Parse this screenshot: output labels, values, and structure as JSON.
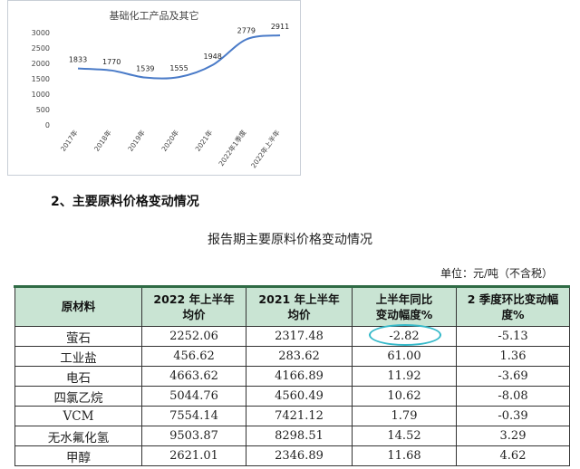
{
  "chart_data": {
    "type": "line",
    "title": "基础化工产品及其它",
    "categories": [
      "2017年",
      "2018年",
      "2019年",
      "2020年",
      "2021年",
      "2022年1季度",
      "2022年上半年"
    ],
    "values": [
      1833,
      1770,
      1539,
      1555,
      1948,
      2779,
      2911
    ],
    "ylim": [
      0,
      3000
    ],
    "yticks": [
      0,
      500,
      1000,
      1500,
      2000,
      2500,
      3000
    ],
    "grid": false,
    "line_color": "#4a7bc8"
  },
  "section_heading": "2、主要原料价格变动情况",
  "table_caption": "报告期主要原料价格变动情况",
  "unit_note": "单位：元/吨（不含税）",
  "table": {
    "headers": [
      "原材料",
      "2022 年上半年\n均价",
      "2021 年上半年\n均价",
      "上半年同比\n变动幅度%",
      "2 季度环比变动幅\n度%"
    ],
    "rows": [
      [
        "萤石",
        "2252.06",
        "2317.48",
        "-2.82",
        "-5.13"
      ],
      [
        "工业盐",
        "456.62",
        "283.62",
        "61.00",
        "1.36"
      ],
      [
        "电石",
        "4663.62",
        "4166.89",
        "11.92",
        "-3.69"
      ],
      [
        "四氯乙烷",
        "5044.76",
        "4560.49",
        "10.62",
        "-8.08"
      ],
      [
        "VCM",
        "7554.14",
        "7421.12",
        "1.79",
        "-0.39"
      ],
      [
        "无水氟化氢",
        "9503.87",
        "8298.51",
        "14.52",
        "3.29"
      ],
      [
        "甲醇",
        "2621.01",
        "2346.89",
        "11.68",
        "4.62"
      ]
    ]
  },
  "colors": {
    "header_bg": "#c9e4d3",
    "highlight": "#35b9c9"
  }
}
